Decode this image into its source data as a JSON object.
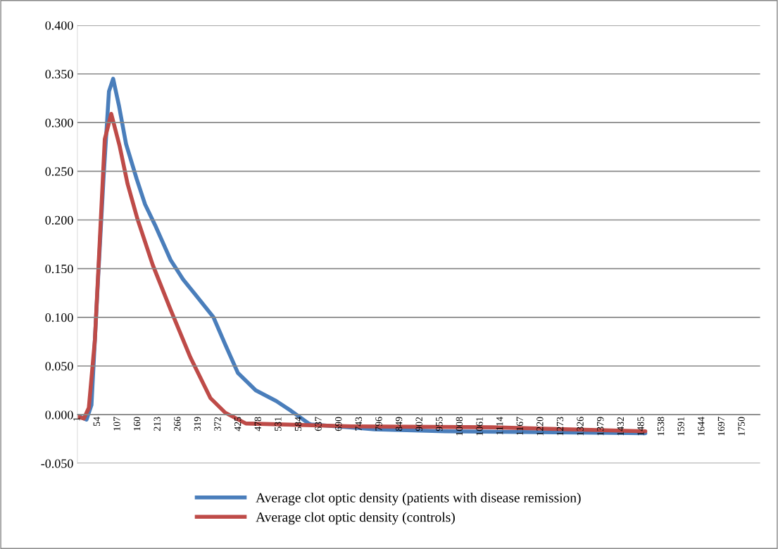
{
  "chart_data": {
    "type": "line",
    "series": [
      {
        "name": "Average clot optic density (patients with disease remission)",
        "color": "#4a7ebb",
        "x": [
          1,
          25,
          38,
          55,
          70,
          84,
          95,
          110,
          129,
          157,
          179,
          205,
          246,
          279,
          312,
          359,
          390,
          423,
          470,
          524,
          563,
          609,
          616,
          783,
          968,
          1495
        ],
        "values": [
          -0.001,
          -0.005,
          0.01,
          0.137,
          0.245,
          0.332,
          0.345,
          0.318,
          0.278,
          0.242,
          0.216,
          0.195,
          0.159,
          0.139,
          0.123,
          0.1,
          0.072,
          0.043,
          0.025,
          0.014,
          0.004,
          -0.009,
          -0.01,
          -0.015,
          -0.017,
          -0.019
        ]
      },
      {
        "name": "Average clot optic density (controls)",
        "color": "#be4b48",
        "x": [
          1,
          18,
          31,
          47,
          60,
          73,
          90,
          112,
          133,
          159,
          199,
          246,
          298,
          351,
          390,
          444,
          722,
          1093,
          1495
        ],
        "values": [
          -0.002,
          -0.004,
          0.007,
          0.077,
          0.18,
          0.283,
          0.309,
          0.276,
          0.237,
          0.201,
          0.154,
          0.108,
          0.059,
          0.017,
          0.002,
          -0.009,
          -0.012,
          -0.013,
          -0.017
        ]
      }
    ],
    "xlim": [
      1,
      1797
    ],
    "xticks": [
      1,
      54,
      107,
      160,
      213,
      266,
      319,
      372,
      425,
      478,
      531,
      584,
      637,
      690,
      743,
      796,
      849,
      902,
      955,
      1008,
      1061,
      1114,
      1167,
      1220,
      1273,
      1326,
      1379,
      1432,
      1485,
      1538,
      1591,
      1644,
      1697,
      1750
    ],
    "ylim": [
      -0.05,
      0.4
    ],
    "yticks": [
      {
        "value": -0.05,
        "label": "-0.050"
      },
      {
        "value": 0,
        "label": "0.000"
      },
      {
        "value": 0.05,
        "label": "0.050"
      },
      {
        "value": 0.1,
        "label": "0.100"
      },
      {
        "value": 0.15,
        "label": "0.150"
      },
      {
        "value": 0.2,
        "label": "0.200"
      },
      {
        "value": 0.25,
        "label": "0.250"
      },
      {
        "value": 0.3,
        "label": "0.300"
      },
      {
        "value": 0.35,
        "label": "0.350"
      },
      {
        "value": 0.4,
        "label": "0.400"
      }
    ],
    "grid": "y",
    "legend": "bottom",
    "marker": "none",
    "line_style": "solid"
  }
}
